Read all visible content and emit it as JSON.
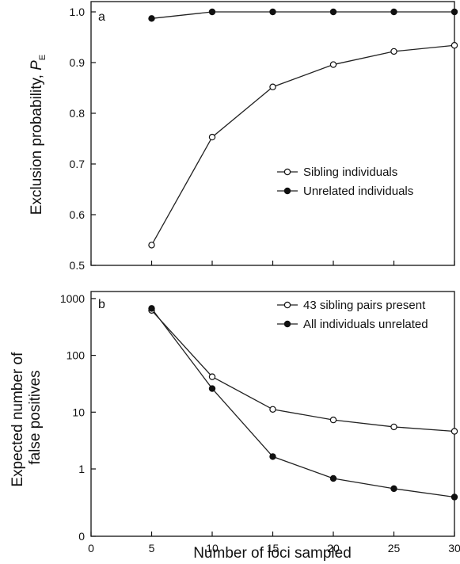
{
  "chart_data": [
    {
      "type": "line",
      "panel_label": "a",
      "x": [
        5,
        10,
        15,
        20,
        25,
        30
      ],
      "xlim": [
        0,
        30
      ],
      "xticks": [
        "0",
        "5",
        "10",
        "15",
        "20",
        "25",
        "30"
      ],
      "ylim": [
        0.5,
        1.0
      ],
      "yticks": [
        "0.5",
        "0.6",
        "0.7",
        "0.8",
        "0.9",
        "1.0"
      ],
      "ylabel": "Exclusion probability, ",
      "ylabel_symbol": "P",
      "ylabel_subscript": "E",
      "legend_position": "center-right",
      "series": [
        {
          "name": "Sibling individuals",
          "marker": "open-circle",
          "values": [
            0.54,
            0.753,
            0.852,
            0.896,
            0.922,
            0.934
          ]
        },
        {
          "name": "Unrelated individuals",
          "marker": "filled-circle",
          "values": [
            0.987,
            1.0,
            1.0,
            1.0,
            1.0,
            1.0
          ]
        }
      ]
    },
    {
      "type": "line",
      "panel_label": "b",
      "x": [
        5,
        10,
        15,
        20,
        25,
        30
      ],
      "xlim": [
        0,
        30
      ],
      "xticks": [
        "0",
        "5",
        "10",
        "15",
        "20",
        "25",
        "30"
      ],
      "yscale": "log",
      "ylim": [
        0,
        1000
      ],
      "yticks": [
        "0",
        "1",
        "10",
        "100",
        "1000"
      ],
      "ylabel_lines": [
        "Expected number of",
        "false positives"
      ],
      "xlabel": "Number of loci sampled",
      "legend_position": "top-right",
      "series": [
        {
          "name": "43 sibling pairs present",
          "marker": "open-circle",
          "values": [
            620,
            42,
            11.2,
            7.3,
            5.5,
            4.6
          ]
        },
        {
          "name": "All individuals unrelated",
          "marker": "filled-circle",
          "values": [
            670,
            26,
            1.65,
            0.68,
            0.45,
            0.32
          ]
        }
      ]
    }
  ]
}
